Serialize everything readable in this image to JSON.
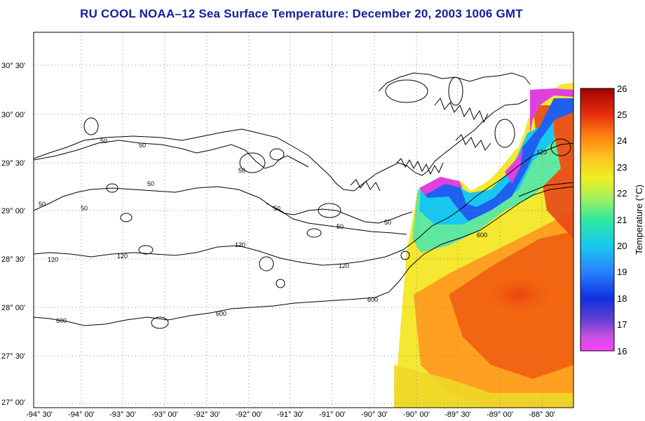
{
  "title": "RU COOL  NOAA–12  Sea Surface Temperature:  December 20, 2003 1006 GMT",
  "axes": {
    "x_ticks": [
      "-94° 30'",
      "-94° 00'",
      "-93° 30'",
      "-93° 00'",
      "-92° 30'",
      "-92° 00'",
      "-91° 30'",
      "-91° 00'",
      "-90° 30'",
      "-90° 00'",
      "-89° 30'",
      "-89° 00'",
      "-88° 30'"
    ],
    "y_ticks": [
      "30° 30'",
      "30° 00'",
      "29° 30'",
      "29° 00'",
      "28° 30'",
      "28° 00'",
      "27° 30'",
      "27° 00'"
    ]
  },
  "colorbar": {
    "label": "Temperature (°C)",
    "ticks": [
      "26",
      "25",
      "24",
      "23",
      "22",
      "21",
      "20",
      "19",
      "18",
      "17",
      "16"
    ],
    "colors": [
      "#ff40ff",
      "#8050d0",
      "#1030e0",
      "#2a80ff",
      "#18c8f0",
      "#30e8a0",
      "#a0f060",
      "#f0f020",
      "#ffc020",
      "#ff8010",
      "#e83010",
      "#a00000"
    ]
  },
  "contour_labels": [
    "50",
    "50",
    "50",
    "50",
    "50",
    "50",
    "50",
    "50",
    "50",
    "120",
    "120",
    "120",
    "120",
    "120",
    "600",
    "600",
    "600",
    "600"
  ],
  "chart_data": {
    "type": "heatmap",
    "title": "RU COOL  NOAA–12  Sea Surface Temperature:  December 20, 2003 1006 GMT",
    "xlabel": "",
    "ylabel": "",
    "x_range": [
      "-94° 30'",
      "-88° 15'"
    ],
    "y_range": [
      "26° 58'",
      "30° 45'"
    ],
    "colorbar_range": [
      16,
      26
    ],
    "colorbar_label": "Temperature (°C)",
    "isobath_labels": [
      "50",
      "120",
      "600"
    ],
    "grid": true
  }
}
